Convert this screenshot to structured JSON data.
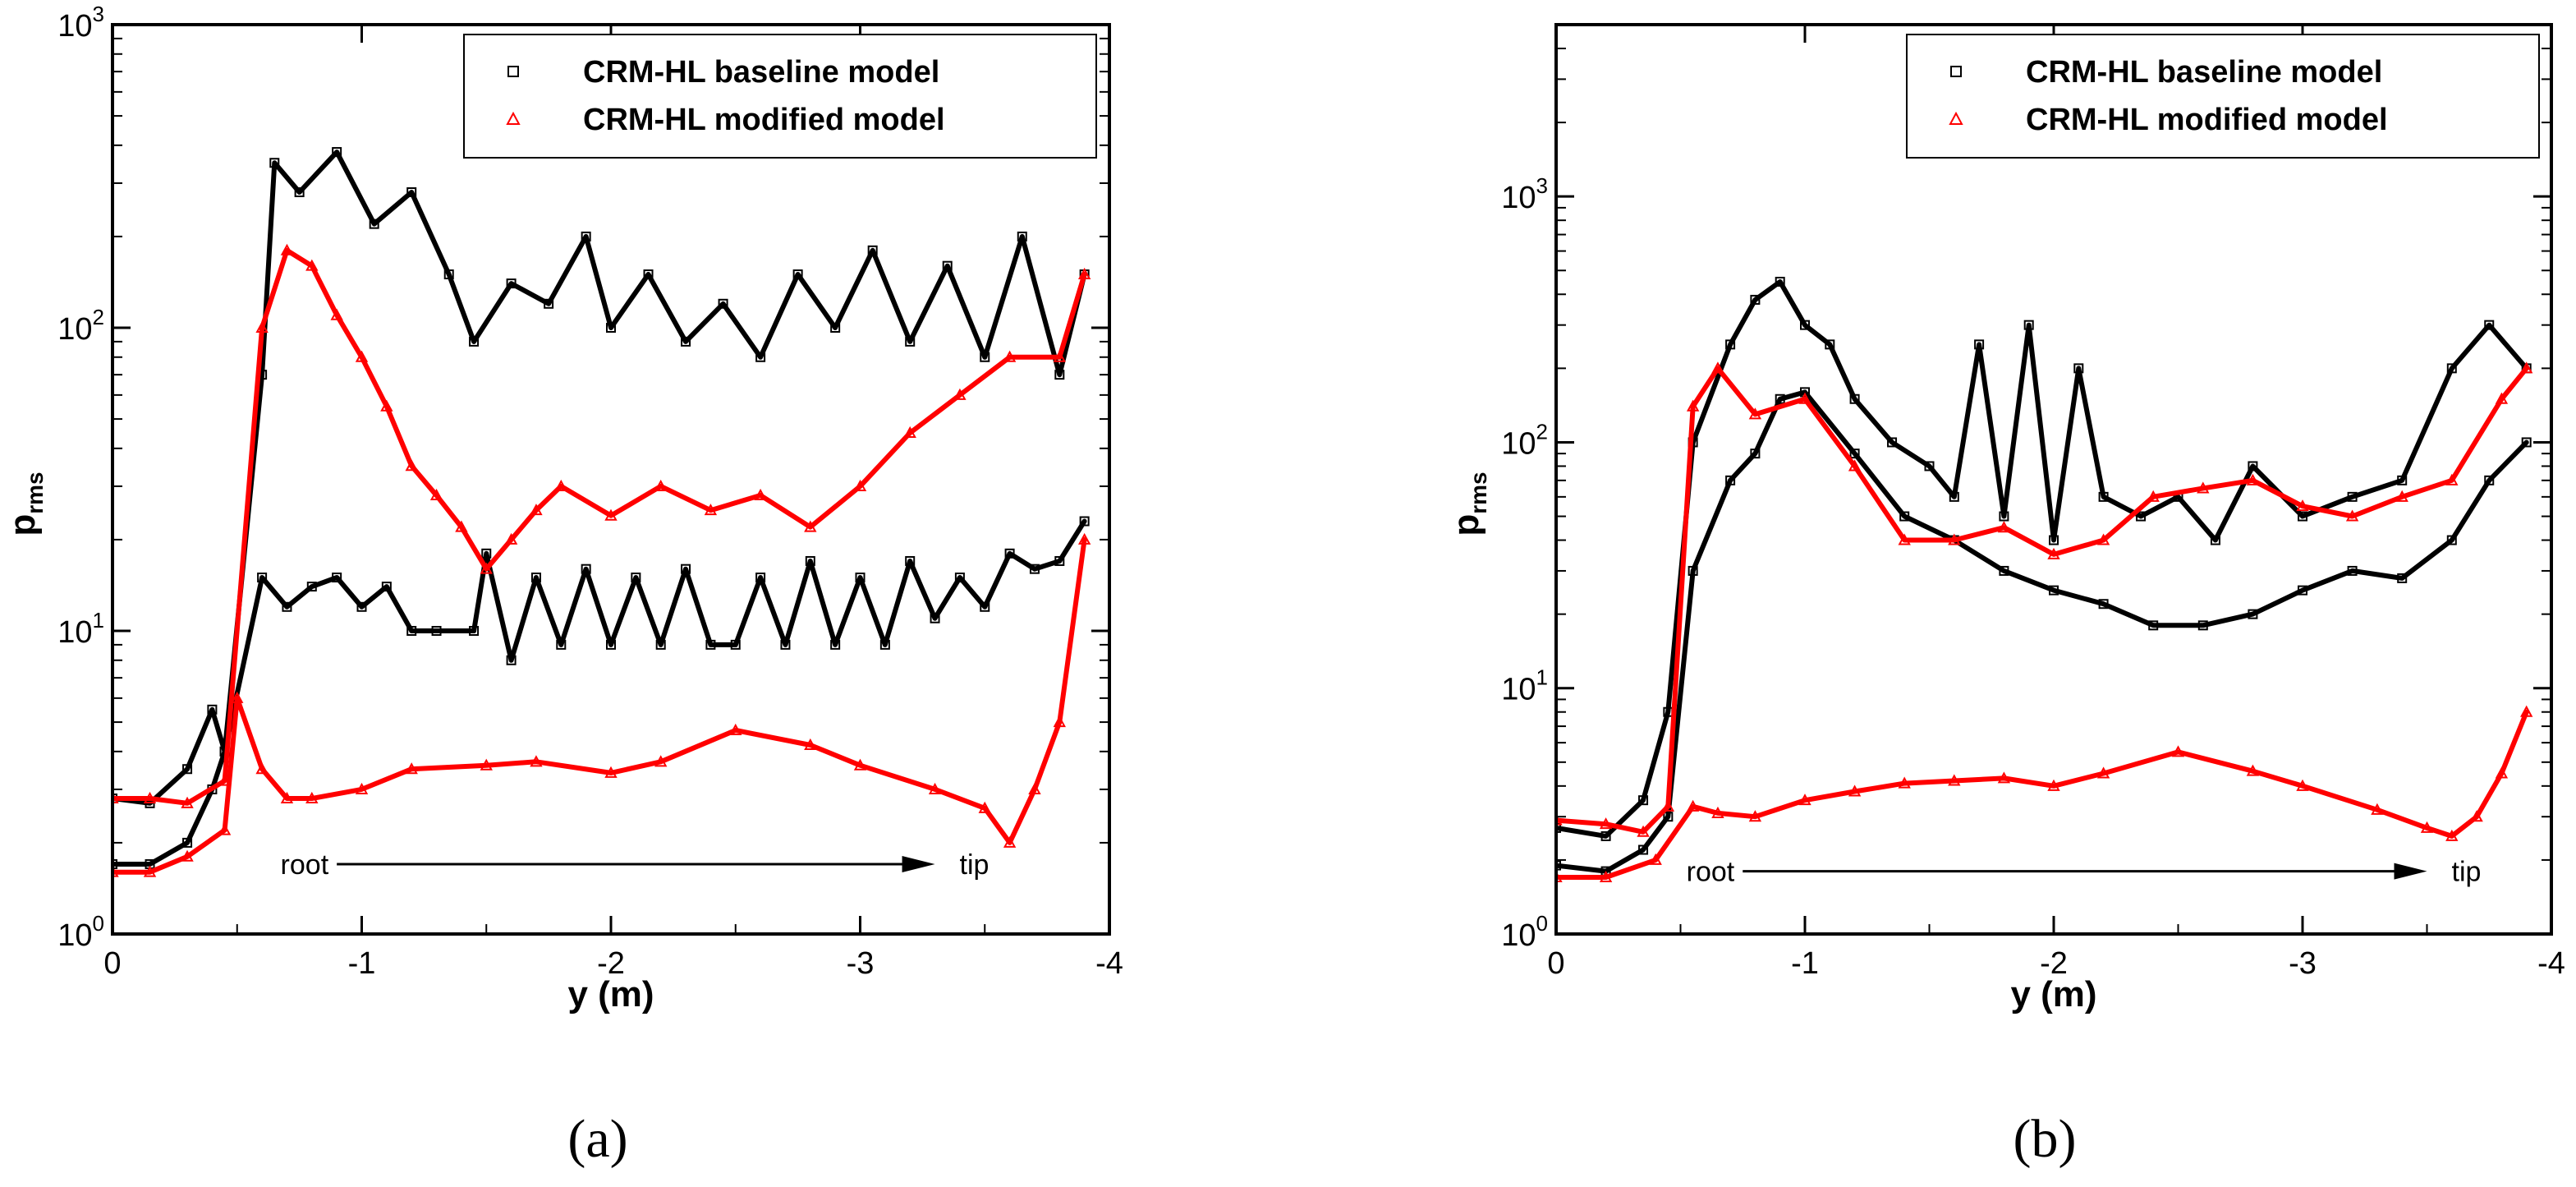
{
  "chart_data": [
    {
      "type": "line",
      "panel_label": "(a)",
      "xlabel": "y (m)",
      "ylabel_main": "p",
      "ylabel_sub": "rms",
      "x_range": [
        0,
        -4
      ],
      "y_range": [
        1,
        1000
      ],
      "y_scale": "log",
      "x_ticks": [
        {
          "value": 0,
          "label": "0"
        },
        {
          "value": -1,
          "label": "-1"
        },
        {
          "value": -2,
          "label": "-2"
        },
        {
          "value": -3,
          "label": "-3"
        },
        {
          "value": -4,
          "label": "-4"
        }
      ],
      "y_ticks": [
        {
          "value": 1,
          "base": "10",
          "exp": "0"
        },
        {
          "value": 10,
          "base": "10",
          "exp": "1"
        },
        {
          "value": 100,
          "base": "10",
          "exp": "2"
        },
        {
          "value": 1000,
          "base": "10",
          "exp": "3"
        }
      ],
      "legend": [
        {
          "label": "CRM-HL baseline model",
          "color": "#000000",
          "marker": "square"
        },
        {
          "label": "CRM-HL modified model",
          "color": "#ff0000",
          "marker": "triangle"
        }
      ],
      "annotations": {
        "root": "root",
        "tip": "tip",
        "arrow_from": -0.9,
        "arrow_to": -3.3,
        "arrow_y": 1.7
      },
      "series": [
        {
          "name": "CRM-HL baseline model (upper)",
          "color": "#000000",
          "x": [
            0,
            -0.15,
            -0.3,
            -0.4,
            -0.45,
            -0.6,
            -0.65,
            -0.75,
            -0.9,
            -1.05,
            -1.2,
            -1.35,
            -1.45,
            -1.6,
            -1.75,
            -1.9,
            -2.0,
            -2.15,
            -2.3,
            -2.45,
            -2.6,
            -2.75,
            -2.9,
            -3.05,
            -3.2,
            -3.35,
            -3.5,
            -3.65,
            -3.8,
            -3.9
          ],
          "y": [
            2.8,
            2.7,
            3.5,
            5.5,
            4,
            70,
            350,
            280,
            380,
            220,
            280,
            150,
            90,
            140,
            120,
            200,
            100,
            150,
            90,
            120,
            80,
            150,
            100,
            180,
            90,
            160,
            80,
            200,
            70,
            150
          ]
        },
        {
          "name": "CRM-HL baseline model (lower)",
          "color": "#000000",
          "x": [
            0,
            -0.15,
            -0.3,
            -0.4,
            -0.45,
            -0.6,
            -0.7,
            -0.8,
            -0.9,
            -1.0,
            -1.1,
            -1.2,
            -1.3,
            -1.45,
            -1.5,
            -1.6,
            -1.7,
            -1.8,
            -1.9,
            -2.0,
            -2.1,
            -2.2,
            -2.3,
            -2.4,
            -2.5,
            -2.6,
            -2.7,
            -2.8,
            -2.9,
            -3.0,
            -3.1,
            -3.2,
            -3.3,
            -3.4,
            -3.5,
            -3.6,
            -3.7,
            -3.8,
            -3.9
          ],
          "y": [
            1.7,
            1.7,
            2.0,
            3.0,
            4,
            15,
            12,
            14,
            15,
            12,
            14,
            10,
            10,
            10,
            18,
            8,
            15,
            9,
            16,
            9,
            15,
            9,
            16,
            9,
            9,
            15,
            9,
            17,
            9,
            15,
            9,
            17,
            11,
            15,
            12,
            18,
            16,
            17,
            23
          ]
        },
        {
          "name": "CRM-HL modified model (upper)",
          "color": "#ff0000",
          "x": [
            0,
            -0.15,
            -0.3,
            -0.45,
            -0.6,
            -0.7,
            -0.8,
            -0.9,
            -1.0,
            -1.1,
            -1.2,
            -1.3,
            -1.4,
            -1.5,
            -1.6,
            -1.7,
            -1.8,
            -2.0,
            -2.2,
            -2.4,
            -2.6,
            -2.8,
            -3.0,
            -3.2,
            -3.4,
            -3.6,
            -3.8,
            -3.9
          ],
          "y": [
            2.8,
            2.8,
            2.7,
            3.2,
            100,
            180,
            160,
            110,
            80,
            55,
            35,
            28,
            22,
            16,
            20,
            25,
            30,
            24,
            30,
            25,
            28,
            22,
            30,
            45,
            60,
            80,
            80,
            150
          ]
        },
        {
          "name": "CRM-HL modified model (lower)",
          "color": "#ff0000",
          "x": [
            0,
            -0.15,
            -0.3,
            -0.45,
            -0.5,
            -0.6,
            -0.7,
            -0.8,
            -1.0,
            -1.2,
            -1.5,
            -1.7,
            -2.0,
            -2.2,
            -2.5,
            -2.8,
            -3.0,
            -3.3,
            -3.5,
            -3.6,
            -3.7,
            -3.8,
            -3.9
          ],
          "y": [
            1.6,
            1.6,
            1.8,
            2.2,
            6,
            3.5,
            2.8,
            2.8,
            3.0,
            3.5,
            3.6,
            3.7,
            3.4,
            3.7,
            4.7,
            4.2,
            3.6,
            3.0,
            2.6,
            2.0,
            3.0,
            5.0,
            20
          ]
        }
      ]
    },
    {
      "type": "line",
      "panel_label": "(b)",
      "xlabel": "y (m)",
      "ylabel_main": "p",
      "ylabel_sub": "rms",
      "x_range": [
        0,
        -4
      ],
      "y_range": [
        1,
        5000
      ],
      "y_scale": "log",
      "x_ticks": [
        {
          "value": 0,
          "label": "0"
        },
        {
          "value": -1,
          "label": "-1"
        },
        {
          "value": -2,
          "label": "-2"
        },
        {
          "value": -3,
          "label": "-3"
        },
        {
          "value": -4,
          "label": "-4"
        }
      ],
      "y_ticks": [
        {
          "value": 1,
          "base": "10",
          "exp": "0"
        },
        {
          "value": 10,
          "base": "10",
          "exp": "1"
        },
        {
          "value": 100,
          "base": "10",
          "exp": "2"
        },
        {
          "value": 1000,
          "base": "10",
          "exp": "3"
        }
      ],
      "legend": [
        {
          "label": "CRM-HL baseline model",
          "color": "#000000",
          "marker": "square"
        },
        {
          "label": "CRM-HL modified model",
          "color": "#ff0000",
          "marker": "triangle"
        }
      ],
      "annotations": {
        "root": "root",
        "tip": "tip",
        "arrow_from": -0.75,
        "arrow_to": -3.5,
        "arrow_y": 1.8
      },
      "series": [
        {
          "name": "CRM-HL baseline model (upper)",
          "color": "#000000",
          "x": [
            0,
            -0.2,
            -0.35,
            -0.45,
            -0.55,
            -0.7,
            -0.8,
            -0.9,
            -1.0,
            -1.1,
            -1.2,
            -1.35,
            -1.5,
            -1.6,
            -1.7,
            -1.8,
            -1.9,
            -2.0,
            -2.1,
            -2.2,
            -2.35,
            -2.5,
            -2.65,
            -2.8,
            -3.0,
            -3.2,
            -3.4,
            -3.6,
            -3.75,
            -3.9
          ],
          "y": [
            2.7,
            2.5,
            3.5,
            8,
            100,
            250,
            380,
            450,
            300,
            250,
            150,
            100,
            80,
            60,
            250,
            50,
            300,
            40,
            200,
            60,
            50,
            60,
            40,
            80,
            50,
            60,
            70,
            200,
            300,
            200
          ]
        },
        {
          "name": "CRM-HL baseline model (lower)",
          "color": "#000000",
          "x": [
            0,
            -0.2,
            -0.35,
            -0.45,
            -0.55,
            -0.7,
            -0.8,
            -0.9,
            -1.0,
            -1.2,
            -1.4,
            -1.6,
            -1.8,
            -2.0,
            -2.2,
            -2.4,
            -2.6,
            -2.8,
            -3.0,
            -3.2,
            -3.4,
            -3.6,
            -3.75,
            -3.9
          ],
          "y": [
            1.9,
            1.8,
            2.2,
            3,
            30,
            70,
            90,
            150,
            160,
            90,
            50,
            40,
            30,
            25,
            22,
            18,
            18,
            20,
            25,
            30,
            28,
            40,
            70,
            100
          ]
        },
        {
          "name": "CRM-HL modified model (upper)",
          "color": "#ff0000",
          "x": [
            0,
            -0.2,
            -0.35,
            -0.45,
            -0.55,
            -0.65,
            -0.8,
            -1.0,
            -1.2,
            -1.4,
            -1.6,
            -1.8,
            -2.0,
            -2.2,
            -2.4,
            -2.6,
            -2.8,
            -3.0,
            -3.2,
            -3.4,
            -3.6,
            -3.8,
            -3.9
          ],
          "y": [
            2.9,
            2.8,
            2.6,
            3.3,
            140,
            200,
            130,
            150,
            80,
            40,
            40,
            45,
            35,
            40,
            60,
            65,
            70,
            55,
            50,
            60,
            70,
            150,
            200
          ]
        },
        {
          "name": "CRM-HL modified model (lower)",
          "color": "#ff0000",
          "x": [
            0,
            -0.2,
            -0.4,
            -0.55,
            -0.65,
            -0.8,
            -1.0,
            -1.2,
            -1.4,
            -1.6,
            -1.8,
            -2.0,
            -2.2,
            -2.5,
            -2.8,
            -3.0,
            -3.3,
            -3.5,
            -3.6,
            -3.7,
            -3.8,
            -3.9
          ],
          "y": [
            1.7,
            1.7,
            2.0,
            3.3,
            3.1,
            3.0,
            3.5,
            3.8,
            4.1,
            4.2,
            4.3,
            4.0,
            4.5,
            5.5,
            4.6,
            4.0,
            3.2,
            2.7,
            2.5,
            3.0,
            4.5,
            8
          ]
        }
      ]
    }
  ]
}
